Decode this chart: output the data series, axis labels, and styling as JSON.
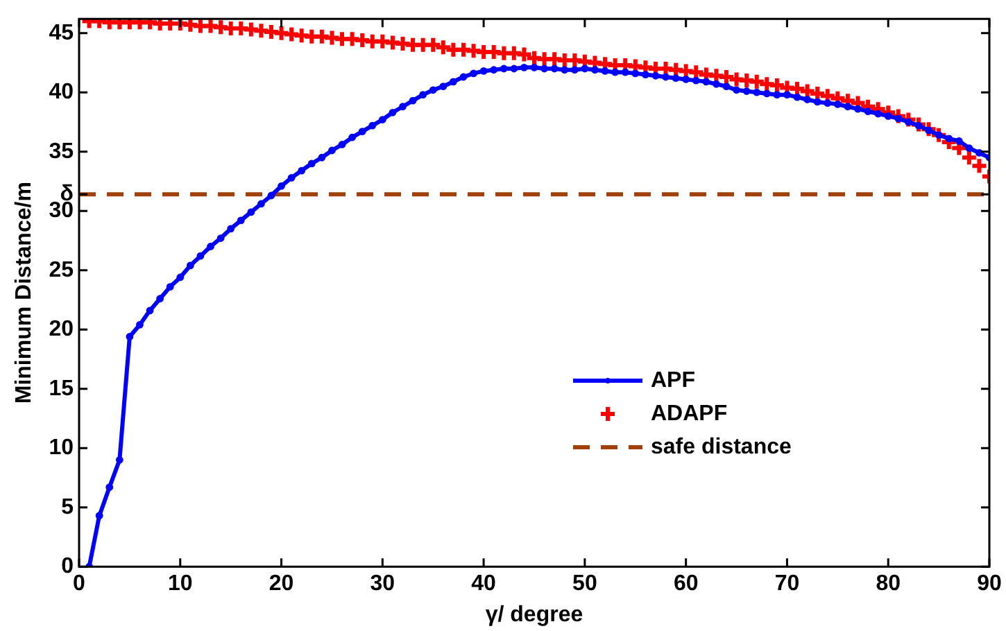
{
  "chart_data": {
    "type": "line",
    "xlabel": "γ/ degree",
    "ylabel": "Minimum Distance/m",
    "x": [
      1,
      2,
      3,
      4,
      5,
      6,
      7,
      8,
      9,
      10,
      11,
      12,
      13,
      14,
      15,
      16,
      17,
      18,
      19,
      20,
      21,
      22,
      23,
      24,
      25,
      26,
      27,
      28,
      29,
      30,
      31,
      32,
      33,
      34,
      35,
      36,
      37,
      38,
      39,
      40,
      41,
      42,
      43,
      44,
      45,
      46,
      47,
      48,
      49,
      50,
      51,
      52,
      53,
      54,
      55,
      56,
      57,
      58,
      59,
      60,
      61,
      62,
      63,
      64,
      65,
      66,
      67,
      68,
      69,
      70,
      71,
      72,
      73,
      74,
      75,
      76,
      77,
      78,
      79,
      80,
      81,
      82,
      83,
      84,
      85,
      86,
      87,
      88,
      89,
      90
    ],
    "series": [
      {
        "name": "APF",
        "type": "line",
        "color": "#0000ff",
        "marker": "circle",
        "line_style": "solid",
        "values": [
          0,
          4.3,
          6.7,
          9.0,
          19.4,
          20.4,
          21.6,
          22.6,
          23.6,
          24.4,
          25.4,
          26.2,
          27.0,
          27.7,
          28.5,
          29.2,
          29.9,
          30.6,
          31.3,
          32.1,
          32.8,
          33.4,
          34.0,
          34.5,
          35.1,
          35.6,
          36.2,
          36.7,
          37.2,
          37.7,
          38.3,
          38.8,
          39.3,
          39.8,
          40.2,
          40.5,
          40.9,
          41.3,
          41.6,
          41.8,
          41.9,
          42.0,
          42.0,
          42.1,
          42.1,
          42.0,
          42.0,
          41.9,
          41.9,
          42.0,
          41.9,
          41.8,
          41.7,
          41.7,
          41.6,
          41.5,
          41.4,
          41.3,
          41.2,
          41.1,
          41.0,
          40.9,
          40.7,
          40.5,
          40.2,
          40.1,
          40.0,
          39.9,
          39.8,
          39.8,
          39.6,
          39.4,
          39.2,
          39.1,
          39.0,
          38.8,
          38.6,
          38.4,
          38.2,
          38.0,
          37.8,
          37.5,
          37.2,
          36.8,
          36.4,
          36.1,
          35.9,
          35.3,
          34.9,
          34.5
        ]
      },
      {
        "name": "ADAPF",
        "type": "scatter",
        "color": "#ff0000",
        "marker": "cross",
        "values": [
          46.0,
          46.0,
          45.9,
          45.9,
          45.9,
          45.9,
          45.9,
          45.8,
          45.8,
          45.8,
          45.7,
          45.6,
          45.6,
          45.5,
          45.4,
          45.4,
          45.3,
          45.2,
          45.1,
          45.0,
          44.9,
          44.8,
          44.7,
          44.7,
          44.6,
          44.5,
          44.5,
          44.4,
          44.3,
          44.3,
          44.2,
          44.1,
          44.0,
          44.0,
          44.0,
          43.8,
          43.6,
          43.6,
          43.5,
          43.4,
          43.4,
          43.3,
          43.3,
          43.2,
          42.9,
          42.8,
          42.8,
          42.7,
          42.7,
          42.6,
          42.5,
          42.4,
          42.3,
          42.3,
          42.2,
          42.1,
          42.0,
          42.0,
          41.9,
          41.8,
          41.7,
          41.5,
          41.4,
          41.3,
          41.1,
          41.0,
          40.9,
          40.7,
          40.6,
          40.4,
          40.3,
          40.1,
          39.9,
          39.7,
          39.5,
          39.3,
          39.1,
          38.8,
          38.6,
          38.3,
          38.0,
          37.7,
          37.3,
          36.9,
          36.4,
          35.8,
          35.3,
          34.5,
          33.8,
          32.9
        ]
      }
    ],
    "ref_lines": [
      {
        "axis": "y",
        "value": 31.4,
        "label": "safe distance",
        "color": "#a0400a",
        "line_style": "dashed"
      }
    ],
    "xlim": [
      0,
      90
    ],
    "xticks": [
      0,
      10,
      20,
      30,
      40,
      50,
      60,
      70,
      80,
      90
    ],
    "ylim": [
      0,
      46.2
    ],
    "yticks": [
      0,
      5,
      10,
      15,
      20,
      25,
      30,
      {
        "value": 31.4,
        "label": "δ"
      },
      35,
      40,
      45
    ],
    "grid": false,
    "legend": "right"
  }
}
